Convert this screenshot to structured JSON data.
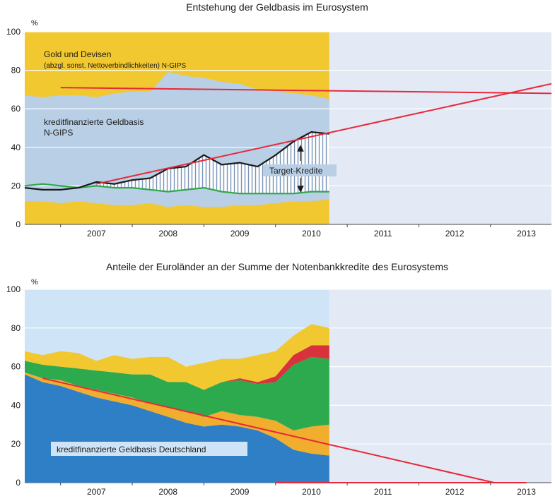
{
  "chart_data": [
    {
      "type": "area",
      "title": "Entstehung der Geldbasis im Eurosystem",
      "unit": "%",
      "ylim": [
        0,
        100
      ],
      "yticks": [
        0,
        20,
        40,
        60,
        80,
        100
      ],
      "xticks": [
        "2007",
        "2008",
        "2009",
        "2010",
        "2011",
        "2012",
        "2013"
      ],
      "xlim": [
        2006.5,
        2013.85
      ],
      "data_end": 2010.75,
      "grid": true,
      "colors": {
        "gold": "#f2c830",
        "credit": "#b9cfe6",
        "projection_bg": "#e4e9f6",
        "series_black": "#1a1a1a",
        "series_green": "#2ea84a",
        "trend": "#e8283a",
        "hatch": "#7a93b8"
      },
      "x": [
        2006.5,
        2006.75,
        2007.0,
        2007.25,
        2007.5,
        2007.75,
        2008.0,
        2008.25,
        2008.5,
        2008.75,
        2009.0,
        2009.25,
        2009.5,
        2009.75,
        2010.0,
        2010.25,
        2010.5,
        2010.75
      ],
      "series": [
        {
          "name": "Gold und Devisen",
          "role": "upper_band_bottom",
          "values": [
            67,
            66,
            67,
            67,
            66,
            68,
            69,
            69,
            79,
            77,
            76,
            74,
            73,
            70,
            69,
            68,
            67,
            65
          ]
        },
        {
          "name": "",
          "role": "lower_band_top",
          "values": [
            12,
            12,
            11,
            12,
            11,
            10,
            10,
            11,
            9,
            10,
            9,
            9,
            10,
            10,
            11,
            12,
            12,
            13
          ]
        },
        {
          "name": "",
          "role": "line_black",
          "values": [
            19,
            18,
            18,
            19,
            22,
            21,
            23,
            24,
            29,
            30,
            36,
            31,
            32,
            30,
            36,
            43,
            48,
            47
          ]
        },
        {
          "name": "",
          "role": "line_green",
          "values": [
            20,
            21,
            20,
            19,
            20,
            19,
            19,
            18,
            17,
            18,
            19,
            17,
            16,
            16,
            16,
            16,
            17,
            17
          ]
        }
      ],
      "trendlines": [
        {
          "x": [
            2007.0,
            2013.85
          ],
          "y": [
            71,
            68
          ]
        },
        {
          "x": [
            2007.5,
            2013.85
          ],
          "y": [
            21,
            73
          ]
        }
      ],
      "annotations": {
        "gold_label": "Gold und Devisen",
        "gold_sub": "(abzgl. sonst. Nettoverbindlichkeiten) N-GIPS",
        "credit_label_1": "kreditfinanzierte Geldbasis",
        "credit_label_2": "N-GIPS",
        "target_label": "Target-Kredite"
      }
    },
    {
      "type": "area",
      "title": "Anteile der Euroländer an der Summe der Notenbankkredite des Eurosystems",
      "unit": "%",
      "ylim": [
        0,
        100
      ],
      "yticks": [
        0,
        20,
        40,
        60,
        80,
        100
      ],
      "xticks": [
        "2007",
        "2008",
        "2009",
        "2010",
        "2011",
        "2012",
        "2013"
      ],
      "xlim": [
        2006.5,
        2013.85
      ],
      "data_end": 2010.75,
      "grid": true,
      "colors": {
        "data_bg": "#cfe4f6",
        "projection_bg": "#e4e9f6",
        "blue": "#2e7fc6",
        "orange": "#f0ad2e",
        "green": "#2eaa4e",
        "red": "#d8323c",
        "yellow": "#f2c830",
        "trend": "#e8283a"
      },
      "x": [
        2006.5,
        2006.75,
        2007.0,
        2007.25,
        2007.5,
        2007.75,
        2008.0,
        2008.25,
        2008.5,
        2008.75,
        2009.0,
        2009.25,
        2009.5,
        2009.75,
        2010.0,
        2010.25,
        2010.5,
        2010.75
      ],
      "stack": [
        {
          "name": "kreditfinanzierte Geldbasis Deutschland",
          "color_key": "blue",
          "values": [
            56,
            52,
            50,
            47,
            44,
            42,
            40,
            37,
            34,
            31,
            29,
            30,
            29,
            27,
            23,
            17,
            15,
            14
          ]
        },
        {
          "name": "",
          "color_key": "orange",
          "values": [
            1,
            2,
            3,
            3,
            4,
            4,
            4,
            4,
            5,
            6,
            5,
            7,
            6,
            7,
            9,
            10,
            14,
            16
          ]
        },
        {
          "name": "",
          "color_key": "green",
          "values": [
            6,
            7,
            7,
            9,
            10,
            11,
            12,
            15,
            13,
            15,
            14,
            15,
            18,
            17,
            20,
            34,
            36,
            34
          ]
        },
        {
          "name": "",
          "color_key": "red",
          "values": [
            0,
            0,
            0,
            0,
            0,
            0,
            0,
            0,
            0,
            0,
            0,
            0,
            1,
            1,
            3,
            5,
            6,
            7
          ]
        },
        {
          "name": "",
          "color_key": "yellow",
          "values": [
            5,
            5,
            8,
            8,
            5,
            9,
            8,
            9,
            13,
            8,
            14,
            12,
            10,
            14,
            13,
            10,
            11,
            9
          ]
        }
      ],
      "trendlines": [
        {
          "x": [
            2006.75,
            2013.05
          ],
          "y": [
            54,
            0
          ]
        },
        {
          "x": [
            2010.0,
            2013.5
          ],
          "y": [
            0,
            0
          ]
        }
      ],
      "annotations": {
        "de_label": "kreditfinanzierte Geldbasis Deutschland"
      }
    }
  ]
}
